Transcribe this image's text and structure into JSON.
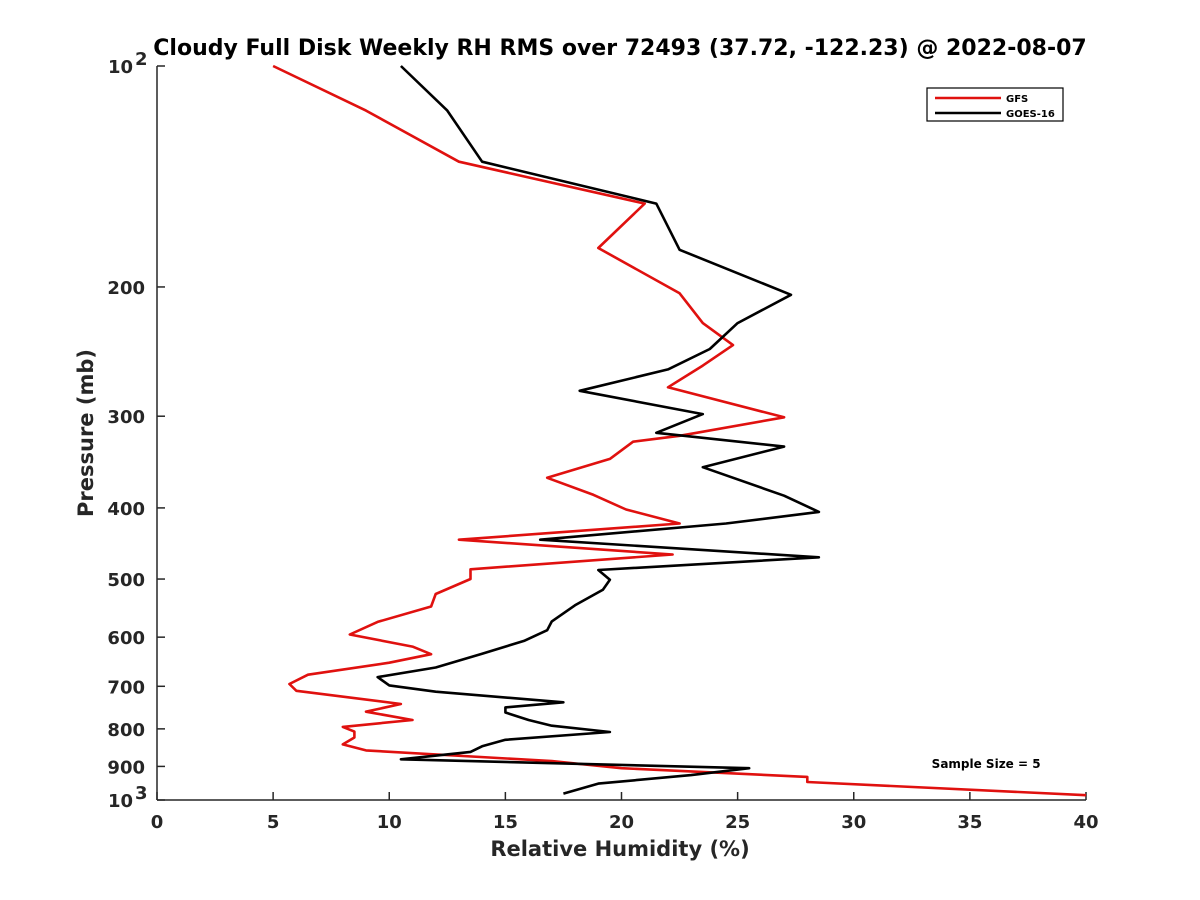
{
  "chart_data": {
    "type": "line",
    "title": "Cloudy Full Disk Weekly RH RMS over 72493 (37.72, -122.23) @ 2022-08-07",
    "xlabel": "Relative Humidity (%)",
    "ylabel": "Pressure (mb)",
    "xlim": [
      0,
      40
    ],
    "ylim": [
      100,
      1000
    ],
    "yscale": "log",
    "y_reversed": true,
    "grid": false,
    "legend_position": "top-right",
    "x_ticks": [
      0,
      5,
      10,
      15,
      20,
      25,
      30,
      35,
      40
    ],
    "y_ticks": [
      {
        "value": 100,
        "label": "10",
        "sup": "2"
      },
      {
        "value": 200,
        "label": "200",
        "sup": ""
      },
      {
        "value": 300,
        "label": "300",
        "sup": ""
      },
      {
        "value": 400,
        "label": "400",
        "sup": ""
      },
      {
        "value": 500,
        "label": "500",
        "sup": ""
      },
      {
        "value": 600,
        "label": "600",
        "sup": ""
      },
      {
        "value": 700,
        "label": "700",
        "sup": ""
      },
      {
        "value": 800,
        "label": "800",
        "sup": ""
      },
      {
        "value": 900,
        "label": "900",
        "sup": ""
      },
      {
        "value": 1000,
        "label": "10",
        "sup": "3"
      }
    ],
    "series": [
      {
        "name": "GFS",
        "color": "#e0110f",
        "points": [
          [
            5.0,
            100
          ],
          [
            9.0,
            115
          ],
          [
            13.0,
            135
          ],
          [
            21.0,
            154
          ],
          [
            19.0,
            177
          ],
          [
            22.5,
            204
          ],
          [
            23.5,
            224
          ],
          [
            24.8,
            240
          ],
          [
            23.5,
            256
          ],
          [
            22.0,
            274
          ],
          [
            27.0,
            301
          ],
          [
            22.5,
            319
          ],
          [
            20.5,
            325
          ],
          [
            19.5,
            343
          ],
          [
            16.8,
            364
          ],
          [
            18.8,
            384
          ],
          [
            20.2,
            402
          ],
          [
            22.5,
            420
          ],
          [
            13.0,
            442
          ],
          [
            22.2,
            463
          ],
          [
            13.5,
            485
          ],
          [
            13.5,
            500
          ],
          [
            12.0,
            524
          ],
          [
            11.8,
            545
          ],
          [
            9.5,
            572
          ],
          [
            8.3,
            595
          ],
          [
            11.0,
            618
          ],
          [
            11.8,
            633
          ],
          [
            10.0,
            650
          ],
          [
            6.5,
            675
          ],
          [
            5.7,
            695
          ],
          [
            6.0,
            710
          ],
          [
            10.5,
            740
          ],
          [
            9.0,
            758
          ],
          [
            11.0,
            778
          ],
          [
            8.0,
            795
          ],
          [
            8.5,
            807
          ],
          [
            8.5,
            822
          ],
          [
            8.0,
            840
          ],
          [
            9.0,
            856
          ],
          [
            17.0,
            885
          ],
          [
            20.0,
            905
          ],
          [
            28.0,
            930
          ],
          [
            28.0,
            945
          ],
          [
            40.0,
            985
          ]
        ]
      },
      {
        "name": "GOES-16",
        "color": "#000000",
        "points": [
          [
            10.5,
            100
          ],
          [
            12.5,
            115
          ],
          [
            14.0,
            135
          ],
          [
            21.5,
            154
          ],
          [
            22.5,
            178
          ],
          [
            27.3,
            205
          ],
          [
            25.0,
            224
          ],
          [
            23.8,
            243
          ],
          [
            22.0,
            259
          ],
          [
            18.2,
            277
          ],
          [
            23.5,
            298
          ],
          [
            21.5,
            316
          ],
          [
            27.0,
            330
          ],
          [
            23.5,
            352
          ],
          [
            27.0,
            385
          ],
          [
            28.5,
            405
          ],
          [
            24.5,
            420
          ],
          [
            16.5,
            442
          ],
          [
            28.5,
            467
          ],
          [
            19.0,
            486
          ],
          [
            19.5,
            501
          ],
          [
            19.2,
            517
          ],
          [
            18.0,
            543
          ],
          [
            17.0,
            571
          ],
          [
            16.8,
            587
          ],
          [
            15.8,
            607
          ],
          [
            14.0,
            632
          ],
          [
            12.0,
            660
          ],
          [
            9.5,
            680
          ],
          [
            10.0,
            698
          ],
          [
            12.0,
            712
          ],
          [
            17.5,
            736
          ],
          [
            15.0,
            748
          ],
          [
            15.0,
            760
          ],
          [
            16.0,
            778
          ],
          [
            17.0,
            792
          ],
          [
            19.5,
            808
          ],
          [
            15.0,
            828
          ],
          [
            14.0,
            845
          ],
          [
            13.5,
            860
          ],
          [
            10.5,
            880
          ],
          [
            25.5,
            905
          ],
          [
            23.0,
            925
          ],
          [
            19.0,
            950
          ],
          [
            17.5,
            980
          ]
        ]
      }
    ],
    "annotations": [
      {
        "text": "Sample Size = 5",
        "x": 35.7,
        "y": 905
      }
    ]
  }
}
